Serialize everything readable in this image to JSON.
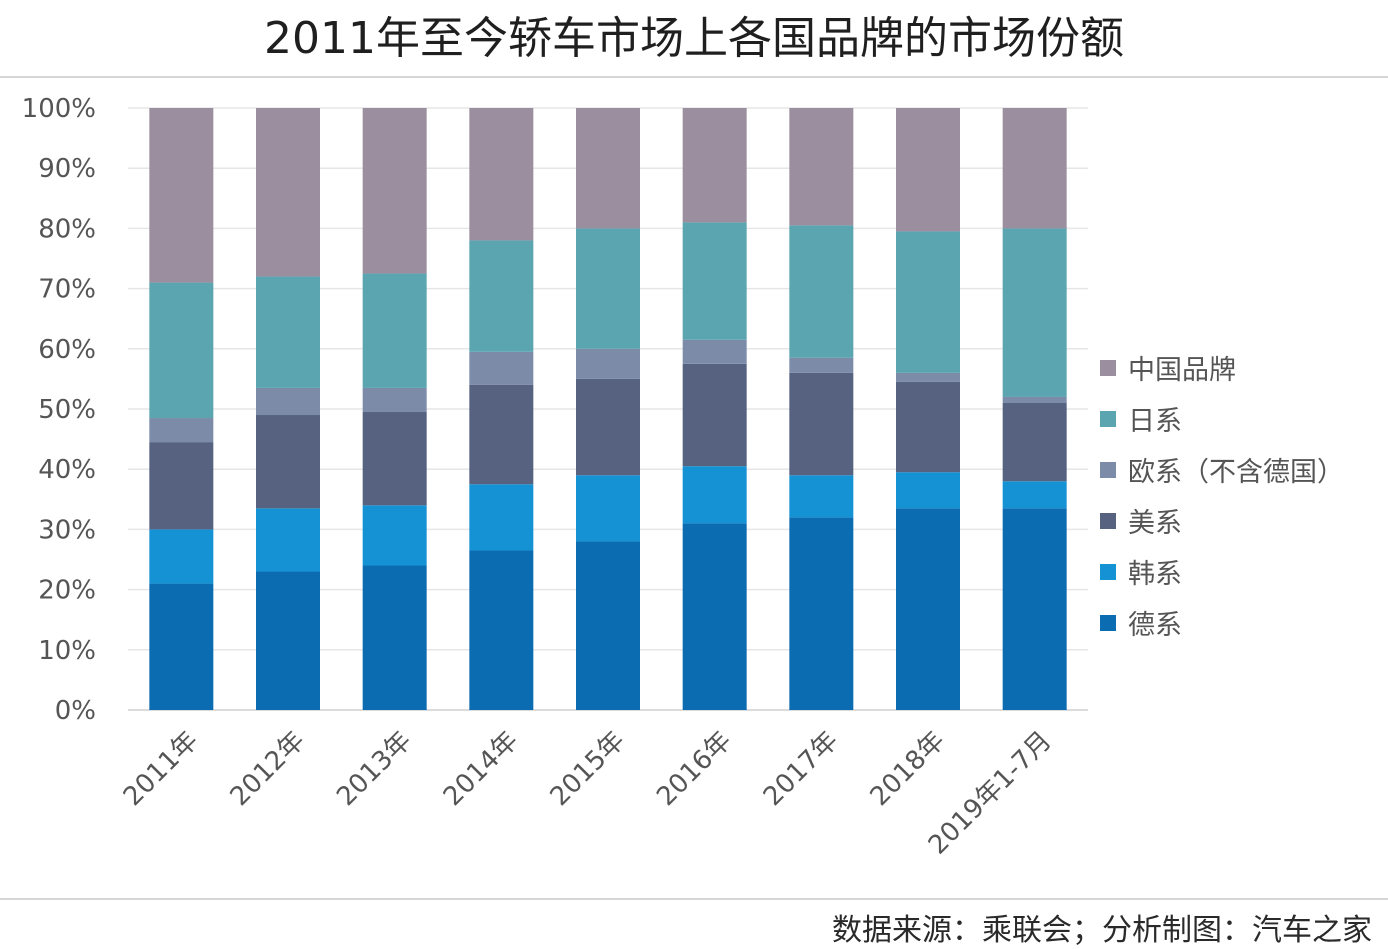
{
  "title": "2011年至今轿车市场上各国品牌的市场份额",
  "source": "数据来源：乘联会；分析制图：汽车之家",
  "chart_data": {
    "type": "bar",
    "stacked": true,
    "categories": [
      "2011年",
      "2012年",
      "2013年",
      "2014年",
      "2015年",
      "2016年",
      "2017年",
      "2018年",
      "2019年1-7月"
    ],
    "y_ticks": [
      "0%",
      "10%",
      "20%",
      "30%",
      "40%",
      "50%",
      "60%",
      "70%",
      "80%",
      "90%",
      "100%"
    ],
    "ylim": [
      0,
      100
    ],
    "grid": true,
    "legend_position": "right",
    "series": [
      {
        "name": "德系",
        "color": "#0b6cb2",
        "values": [
          21,
          23,
          24,
          26.5,
          28,
          31,
          32,
          33.5,
          33.5
        ]
      },
      {
        "name": "韩系",
        "color": "#1592d3",
        "values": [
          9,
          10.5,
          10,
          11,
          11,
          9.5,
          7,
          6,
          4.5
        ]
      },
      {
        "name": "美系",
        "color": "#576280",
        "values": [
          14.5,
          15.5,
          15.5,
          16.5,
          16,
          17,
          17,
          15,
          13
        ]
      },
      {
        "name": "欧系（不含德国）",
        "color": "#7c8ca8",
        "values": [
          4,
          4.5,
          4,
          5.5,
          5,
          4,
          2.5,
          1.5,
          1
        ]
      },
      {
        "name": "日系",
        "color": "#5ba5b1",
        "values": [
          22.5,
          18.5,
          19,
          18.5,
          20,
          19.5,
          22,
          23.5,
          28
        ]
      },
      {
        "name": "中国品牌",
        "color": "#9a8e9f",
        "values": [
          29,
          28,
          27.5,
          22,
          20,
          19,
          19.5,
          20.5,
          20
        ]
      }
    ]
  }
}
